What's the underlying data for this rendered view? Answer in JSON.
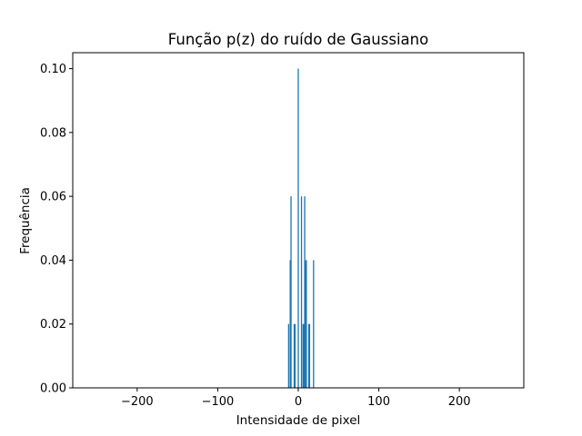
{
  "chart_data": {
    "type": "bar",
    "title": "Função p(z) do ruído de Gaussiano",
    "xlabel": "Intensidade de pixel",
    "ylabel": "Frequência",
    "xlim": [
      -280,
      280
    ],
    "ylim": [
      0,
      0.105
    ],
    "xticks": [
      -200,
      -100,
      0,
      100,
      200
    ],
    "xtick_labels": [
      "−200",
      "−100",
      "0",
      "100",
      "200"
    ],
    "yticks": [
      0.0,
      0.02,
      0.04,
      0.06,
      0.08,
      0.1
    ],
    "ytick_labels": [
      "0.00",
      "0.02",
      "0.04",
      "0.06",
      "0.08",
      "0.10"
    ],
    "grid": false,
    "color": "#1f77b4",
    "bar_width": 1.5,
    "x": [
      -12,
      -10,
      -9,
      -5,
      -4,
      0,
      4,
      6,
      7,
      8,
      9,
      10,
      13,
      14,
      19
    ],
    "values": [
      0.02,
      0.04,
      0.06,
      0.02,
      0.02,
      0.1,
      0.06,
      0.02,
      0.02,
      0.06,
      0.04,
      0.04,
      0.02,
      0.02,
      0.04
    ]
  }
}
